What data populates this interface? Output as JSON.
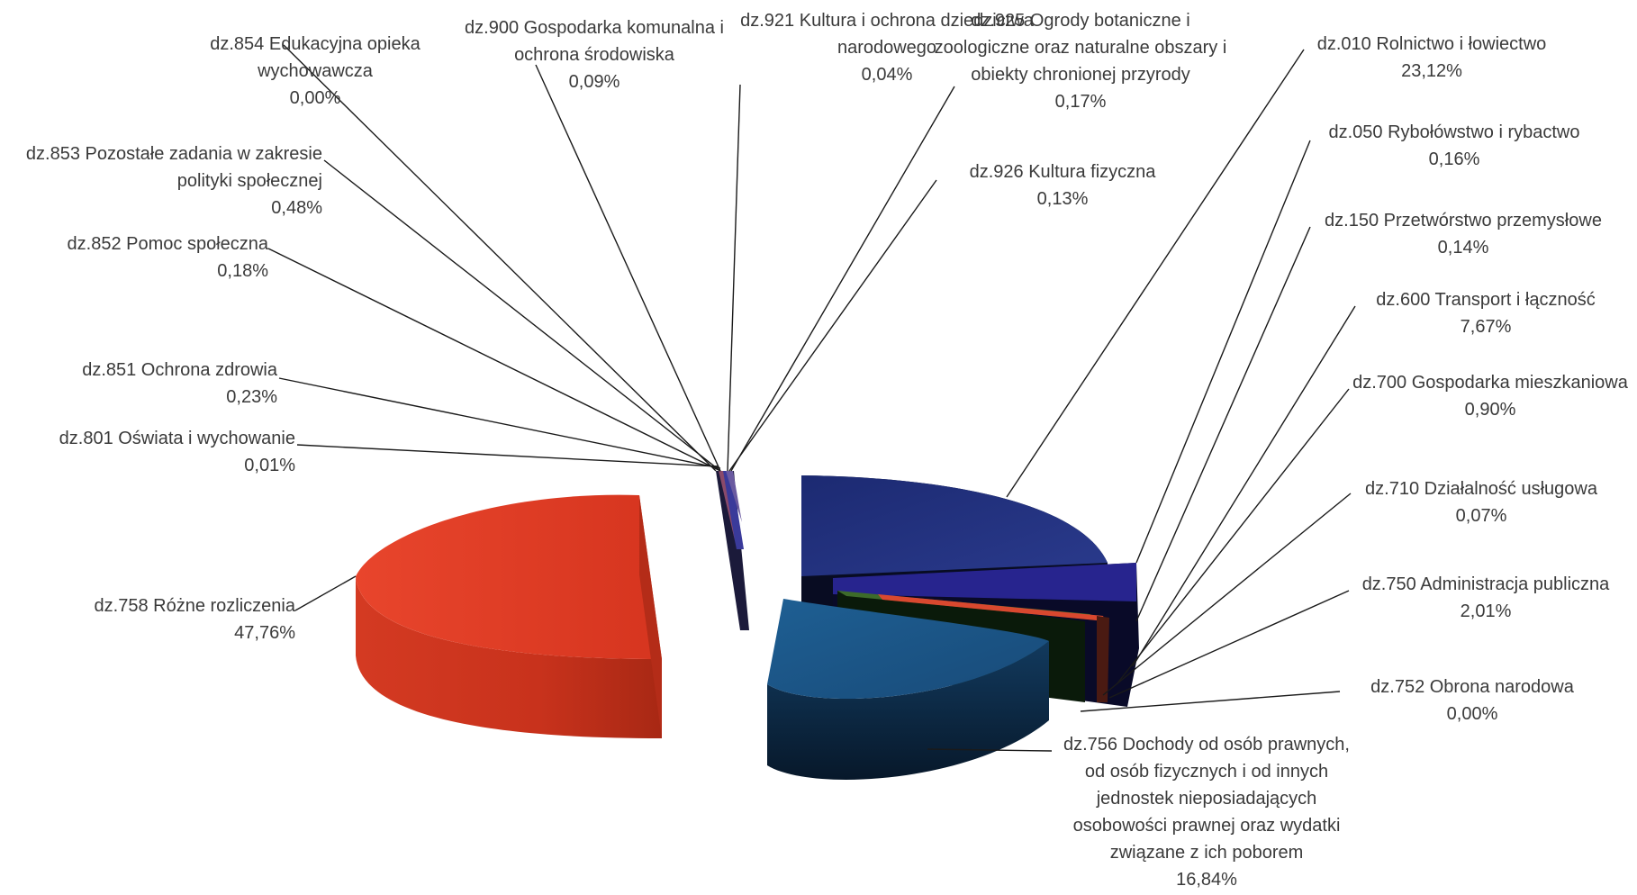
{
  "chart_data": {
    "type": "pie",
    "title": "",
    "legend": "none",
    "slices": [
      {
        "label": "dz.010 Rolnictwo i łowiectwo",
        "value": 23.12,
        "value_label": "23,12%",
        "color": "#1f2f7a"
      },
      {
        "label": "dz.050 Rybołówstwo i rybactwo",
        "value": 0.16,
        "value_label": "0,16%",
        "color": "#2b2f8a"
      },
      {
        "label": "dz.150 Przetwórstwo przemysłowe",
        "value": 0.14,
        "value_label": "0,14%",
        "color": "#7a2d2d"
      },
      {
        "label": "dz.600 Transport i łączność",
        "value": 7.67,
        "value_label": "7,67%",
        "color": "#26248c"
      },
      {
        "label": "dz.700 Gospodarka mieszkaniowa",
        "value": 0.9,
        "value_label": "0,90%",
        "color": "#3d6b2a"
      },
      {
        "label": "dz.710 Działalność usługowa",
        "value": 0.07,
        "value_label": "0,07%",
        "color": "#6a4a9a"
      },
      {
        "label": "dz.750 Administracja publiczna",
        "value": 2.01,
        "value_label": "2,01%",
        "color": "#d9482f"
      },
      {
        "label": "dz.752 Obrona narodowa",
        "value": 0.0,
        "value_label": "0,00%",
        "color": "#2f5a8a"
      },
      {
        "label": "dz.756 Dochody od osób prawnych, od osób fizycznych i od innych jednostek nieposiadających osobowości prawnej oraz wydatki związane z ich poborem",
        "value": 16.84,
        "value_label": "16,84%",
        "color": "#1d5a8c"
      },
      {
        "label": "dz.758 Różne rozliczenia",
        "value": 47.76,
        "value_label": "47,76%",
        "color": "#e8412a"
      },
      {
        "label": "dz.801 Oświata i wychowanie",
        "value": 0.01,
        "value_label": "0,01%",
        "color": "#4a4a9a"
      },
      {
        "label": "dz.851 Ochrona zdrowia",
        "value": 0.23,
        "value_label": "0,23%",
        "color": "#3a3a8a"
      },
      {
        "label": "dz.852 Pomoc społeczna",
        "value": 0.18,
        "value_label": "0,18%",
        "color": "#5a3a7a"
      },
      {
        "label": "dz.853 Pozostałe zadania w zakresie polityki społecznej",
        "value": 0.48,
        "value_label": "0,48%",
        "color": "#3a5aa0"
      },
      {
        "label": "dz.854 Edukacyjna opieka wychowawcza",
        "value": 0.0,
        "value_label": "0,00%",
        "color": "#6a6aaa"
      },
      {
        "label": "dz.900 Gospodarka komunalna i ochrona środowiska",
        "value": 0.09,
        "value_label": "0,09%",
        "color": "#7a7ab0"
      },
      {
        "label": "dz.921 Kultura i ochrona dziedzictwa narodowego",
        "value": 0.04,
        "value_label": "0,04%",
        "color": "#8a5aa0"
      },
      {
        "label": "dz.925 Ogrody botaniczne i zoologiczne oraz naturalne obszary i obiekty chronionej przyrody",
        "value": 0.17,
        "value_label": "0,17%",
        "color": "#3a3a7a"
      },
      {
        "label": "dz.926 Kultura fizyczna",
        "value": 0.13,
        "value_label": "0,13%",
        "color": "#5a5a9a"
      }
    ]
  },
  "labels": {
    "l010": {
      "lines": [
        "dz.010 Rolnictwo i łowiectwo"
      ],
      "pct": "23,12%"
    },
    "l050": {
      "lines": [
        "dz.050 Rybołówstwo i rybactwo"
      ],
      "pct": "0,16%"
    },
    "l150": {
      "lines": [
        "dz.150 Przetwórstwo przemysłowe"
      ],
      "pct": "0,14%"
    },
    "l600": {
      "lines": [
        "dz.600 Transport i łączność"
      ],
      "pct": "7,67%"
    },
    "l700": {
      "lines": [
        "dz.700 Gospodarka mieszkaniowa"
      ],
      "pct": "0,90%"
    },
    "l710": {
      "lines": [
        "dz.710 Działalność usługowa"
      ],
      "pct": "0,07%"
    },
    "l750": {
      "lines": [
        "dz.750 Administracja publiczna"
      ],
      "pct": "2,01%"
    },
    "l752": {
      "lines": [
        "dz.752 Obrona narodowa"
      ],
      "pct": "0,00%"
    },
    "l756": {
      "lines": [
        "dz.756 Dochody od osób prawnych,",
        "od osób fizycznych i od innych",
        "jednostek nieposiadających",
        "osobowości prawnej oraz wydatki",
        "związane z ich poborem"
      ],
      "pct": "16,84%"
    },
    "l758": {
      "lines": [
        "dz.758 Różne rozliczenia"
      ],
      "pct": "47,76%"
    },
    "l801": {
      "lines": [
        "dz.801 Oświata i wychowanie"
      ],
      "pct": "0,01%"
    },
    "l851": {
      "lines": [
        "dz.851 Ochrona zdrowia"
      ],
      "pct": "0,23%"
    },
    "l852": {
      "lines": [
        "dz.852 Pomoc społeczna"
      ],
      "pct": "0,18%"
    },
    "l853": {
      "lines": [
        "dz.853 Pozostałe zadania w zakresie",
        "polityki społecznej"
      ],
      "pct": "0,48%"
    },
    "l854": {
      "lines": [
        "dz.854 Edukacyjna opieka",
        "wychowawcza"
      ],
      "pct": "0,00%"
    },
    "l900": {
      "lines": [
        "dz.900 Gospodarka komunalna i",
        "ochrona środowiska"
      ],
      "pct": "0,09%"
    },
    "l921": {
      "lines": [
        "dz.921 Kultura i ochrona dziedzictwa",
        "narodowego"
      ],
      "pct": "0,04%"
    },
    "l925": {
      "lines": [
        "dz.925 Ogrody botaniczne i",
        "zoologiczne oraz naturalne obszary i",
        "obiekty chronionej przyrody"
      ],
      "pct": "0,17%"
    },
    "l926": {
      "lines": [
        "dz.926 Kultura fizyczna"
      ],
      "pct": "0,13%"
    }
  }
}
